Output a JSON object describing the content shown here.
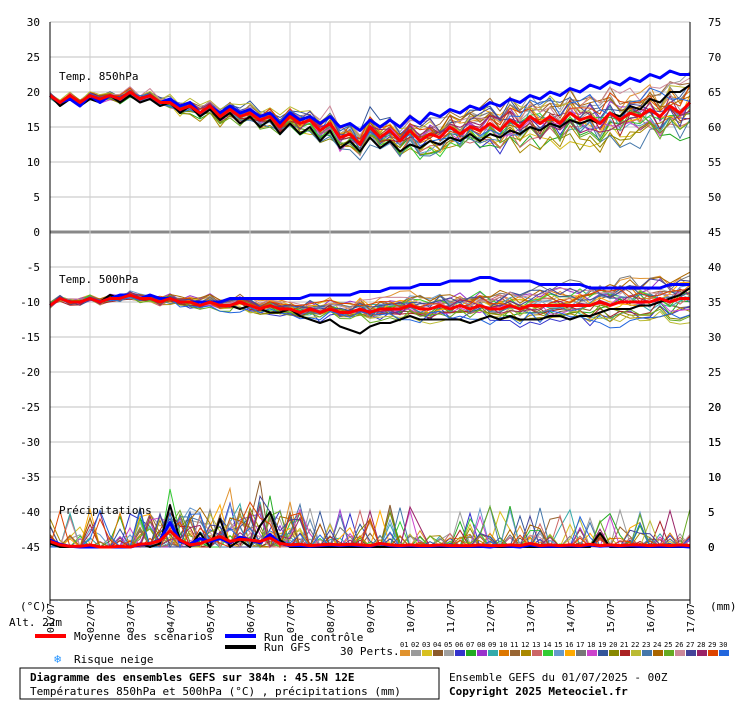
{
  "chart_data": {
    "type": "line",
    "title": "Diagramme des ensembles GEFS sur 384h : 45.5N 12E",
    "subtitle": "Températures 850hPa et 500hPa (°C) , précipitations (mm)",
    "run_info": "Ensemble GEFS du 01/07/2025 - 00Z",
    "copyright": "Copyright 2025 Meteociel.fr",
    "altitude": "Alt. 22m",
    "left_unit": "(°C)",
    "right_unit": "(mm)",
    "x_ticks": [
      "01/07",
      "02/07",
      "03/07",
      "04/07",
      "05/07",
      "06/07",
      "07/07",
      "08/07",
      "09/07",
      "10/07",
      "11/07",
      "12/07",
      "13/07",
      "14/07",
      "15/07",
      "16/07",
      "17/07"
    ],
    "panels": {
      "temp850": {
        "label": "Temp. 850hPa",
        "left_ticks": [
          "30",
          "25",
          "20",
          "15",
          "10",
          "5",
          "0"
        ],
        "right_ticks": [
          "75",
          "70",
          "65",
          "60",
          "55",
          "50",
          "45"
        ],
        "ylim": [
          0,
          30
        ],
        "mean": [
          19.5,
          18.5,
          19.5,
          18.5,
          19.5,
          19,
          19.5,
          19,
          20,
          19,
          19.5,
          18.5,
          18.5,
          17.5,
          18,
          17,
          18,
          16.5,
          17.5,
          16.5,
          17,
          16,
          16.5,
          15,
          16.5,
          15.5,
          16,
          14.5,
          15.5,
          13.5,
          14,
          12.5,
          15,
          13.5,
          14.5,
          13,
          14.5,
          13,
          14,
          13.5,
          15,
          14,
          15,
          14.5,
          15.5,
          14.5,
          16,
          15,
          16.5,
          15.5,
          16.5,
          15.5,
          17,
          16,
          16.5,
          15.5,
          17,
          16,
          17,
          16.5,
          17.5,
          16.5,
          18,
          17,
          18.5
        ],
        "control": [
          19.5,
          18.5,
          19,
          18,
          19.5,
          18.5,
          19.5,
          19,
          20,
          19,
          19.5,
          18.5,
          19,
          18,
          18.5,
          17,
          18,
          17,
          18,
          17,
          17.5,
          16.5,
          17,
          15.5,
          17,
          16,
          16.5,
          15.5,
          16.5,
          15,
          15.5,
          14.5,
          16,
          15,
          16,
          15,
          16.5,
          15.5,
          17,
          16.5,
          17.5,
          17,
          18,
          17.5,
          18.5,
          18,
          19,
          18.5,
          19.5,
          19,
          20,
          19.5,
          20.5,
          20,
          21,
          20.5,
          21.5,
          21,
          22,
          21.5,
          22.5,
          22,
          23,
          22.5,
          22.5
        ],
        "gfs": [
          19.5,
          18,
          19,
          18,
          19,
          18.5,
          19.5,
          18.5,
          19.5,
          18.5,
          19,
          18,
          18.5,
          17,
          18,
          16.5,
          17.5,
          16,
          17,
          15.5,
          16.5,
          15,
          16,
          14,
          15.5,
          14,
          15,
          13,
          14.5,
          12,
          13,
          11.5,
          13.5,
          12,
          13,
          11.5,
          12.5,
          12,
          13,
          12.5,
          13.5,
          13,
          14,
          13,
          14,
          13.5,
          14.5,
          14,
          15,
          14.5,
          15.5,
          15,
          16,
          15.5,
          16,
          15.5,
          17,
          16.5,
          18,
          17.5,
          19,
          18.5,
          20,
          20,
          21
        ]
      },
      "temp500": {
        "label": "Temp. 500hPa",
        "left_ticks": [
          "-5",
          "-10",
          "-15",
          "-20",
          "-25",
          "-30",
          "-35",
          "-40",
          "-45"
        ],
        "right_ticks": [
          "40",
          "35",
          "30",
          "25",
          "20",
          "15",
          "10",
          "5",
          "0"
        ],
        "ylim": [
          -20,
          -5
        ],
        "mean": [
          -10.5,
          -9.5,
          -10,
          -10,
          -9.5,
          -10,
          -9.5,
          -9.5,
          -9,
          -9.5,
          -9.5,
          -10,
          -9.5,
          -10,
          -10,
          -10.5,
          -10,
          -10.5,
          -10.5,
          -10,
          -10.5,
          -11,
          -10.5,
          -11,
          -11,
          -11.5,
          -11,
          -11.5,
          -11,
          -11.5,
          -11.5,
          -11,
          -11.5,
          -11,
          -11,
          -11,
          -10.5,
          -11,
          -11,
          -10.5,
          -11,
          -10.5,
          -11,
          -10.5,
          -11,
          -11,
          -10.5,
          -11,
          -10.5,
          -10.5,
          -10.5,
          -10.5,
          -10.5,
          -10.5,
          -10.5,
          -10,
          -10.5,
          -10,
          -10,
          -10,
          -10,
          -9.5,
          -10,
          -9.5,
          -9.5
        ],
        "control": [
          -10.5,
          -9.5,
          -10,
          -10,
          -9.5,
          -10,
          -9.5,
          -9,
          -9,
          -9.5,
          -9,
          -9.5,
          -9.5,
          -10,
          -10,
          -10,
          -10,
          -10,
          -9.5,
          -9.5,
          -9.5,
          -9.5,
          -9.5,
          -9.5,
          -9.5,
          -9.5,
          -9,
          -9,
          -9,
          -9,
          -9,
          -8.5,
          -8.5,
          -8.5,
          -8,
          -8,
          -8,
          -7.5,
          -7.5,
          -7.5,
          -7,
          -7,
          -7,
          -6.5,
          -6.5,
          -7,
          -7,
          -7,
          -7,
          -7.5,
          -7.5,
          -7.5,
          -7.5,
          -7.5,
          -8,
          -8,
          -8,
          -8,
          -8,
          -8,
          -8,
          -8,
          -7.5,
          -7.5,
          -7.5
        ],
        "gfs": [
          -10.5,
          -9.5,
          -10,
          -10,
          -9.5,
          -10,
          -9,
          -9.5,
          -9,
          -9.5,
          -9.5,
          -10,
          -9.5,
          -10,
          -10,
          -10.5,
          -10,
          -10.5,
          -10.5,
          -11,
          -10.5,
          -11,
          -11.5,
          -11.5,
          -11,
          -12,
          -12.5,
          -13,
          -12.5,
          -13.5,
          -14,
          -14.5,
          -13.5,
          -13,
          -13,
          -12.5,
          -12,
          -12.5,
          -12.5,
          -12.5,
          -12.5,
          -12.5,
          -13,
          -12.5,
          -12,
          -12.5,
          -12,
          -12.5,
          -12.5,
          -12.5,
          -12,
          -12,
          -12.5,
          -12,
          -12,
          -11.5,
          -11,
          -11,
          -11,
          -10.5,
          -10.5,
          -10,
          -9.5,
          -9,
          -8
        ]
      },
      "precip": {
        "label": "Précipitations",
        "right_ticks": [
          "20",
          "15",
          "10",
          "5",
          "0"
        ],
        "ylim": [
          0,
          20
        ],
        "mean": [
          0.8,
          0.3,
          0.1,
          0.1,
          0.3,
          0,
          0,
          0.1,
          0,
          0.4,
          0.5,
          0.9,
          2.3,
          1,
          0.3,
          0.5,
          1,
          1.5,
          0.8,
          1.1,
          1,
          0.8,
          1.3,
          0.5,
          0.3,
          0.4,
          0.2,
          0.3,
          0.4,
          0.3,
          0.4,
          0.3,
          0.2,
          0.5,
          0.3,
          0.2,
          0.3,
          0.2,
          0.2,
          0.3,
          0.2,
          0.2,
          0.2,
          0.3,
          0.2,
          0.2,
          0.3,
          0.2,
          0.5,
          0.2,
          0.3,
          0.2,
          0.3,
          0.2,
          0.4,
          0.2,
          0.3,
          0.2,
          0.3,
          0.3,
          0.2,
          0.3,
          0.2,
          0.3,
          0.2
        ],
        "control": [
          1,
          0.4,
          0.1,
          0,
          0,
          0,
          0,
          0,
          0,
          0.3,
          0.5,
          1,
          3.5,
          0.8,
          0.4,
          1.2,
          0.8,
          1.2,
          0.6,
          1.4,
          1,
          0.6,
          1.8,
          0.5,
          0.2,
          0.2,
          0.1,
          0.2,
          0.3,
          0.2,
          0.3,
          0.2,
          0.1,
          0.5,
          0.2,
          0.1,
          0.2,
          0.1,
          0.1,
          0.2,
          0.1,
          0.1,
          0.1,
          0.1,
          0,
          0.2,
          0.1,
          0,
          0.3,
          0.1,
          0.1,
          0.1,
          0.2,
          0.1,
          0.3,
          0.1,
          0.2,
          0.1,
          0.2,
          0.1,
          0.1,
          0.1,
          0.1,
          0.1,
          0
        ],
        "gfs": [
          0.5,
          0,
          0,
          0,
          0,
          0,
          0,
          0,
          0,
          0.5,
          0,
          0.5,
          6,
          1,
          0,
          2,
          0,
          4,
          0,
          1,
          0,
          3,
          5,
          1,
          0,
          0,
          0,
          0,
          0,
          0,
          0,
          0,
          0,
          0,
          0,
          0,
          0,
          0,
          0,
          0,
          0,
          0,
          0,
          0,
          0,
          0,
          0,
          0,
          0,
          0,
          0,
          0,
          0,
          0,
          0,
          2,
          0,
          0,
          0,
          0,
          0,
          0,
          0,
          0,
          0
        ]
      }
    },
    "legend": {
      "mean": "Moyenne des scénarios",
      "control": "Run de contrôle",
      "gfs": "Run GFS",
      "snow": "Risque neige",
      "perts_label": "30 Perts.",
      "pert_numbers": [
        "01",
        "02",
        "03",
        "04",
        "05",
        "06",
        "07",
        "08",
        "09",
        "10",
        "11",
        "12",
        "13",
        "14",
        "15",
        "16",
        "17",
        "18",
        "19",
        "20",
        "21",
        "22",
        "23",
        "24",
        "25",
        "26",
        "27",
        "28",
        "29",
        "30"
      ],
      "colors": {
        "mean": "#ff0000",
        "control": "#0000ff",
        "gfs": "#000000",
        "snow": "#1e90ff",
        "perts": [
          "#e0922e",
          "#9a9a9a",
          "#d8c020",
          "#8b5a2b",
          "#a0a0a0",
          "#3333cc",
          "#22aa22",
          "#9933cc",
          "#33aaaa",
          "#dd7700",
          "#996633",
          "#aa8800",
          "#cc6666",
          "#33cc33",
          "#6699cc",
          "#ffaa00",
          "#777777",
          "#cc44cc",
          "#335599",
          "#888800",
          "#aa2222",
          "#bbbb33",
          "#4477aa",
          "#aa6600",
          "#66aa22",
          "#cc8899",
          "#444499",
          "#992266",
          "#dd4400",
          "#2266dd"
        ]
      }
    }
  }
}
